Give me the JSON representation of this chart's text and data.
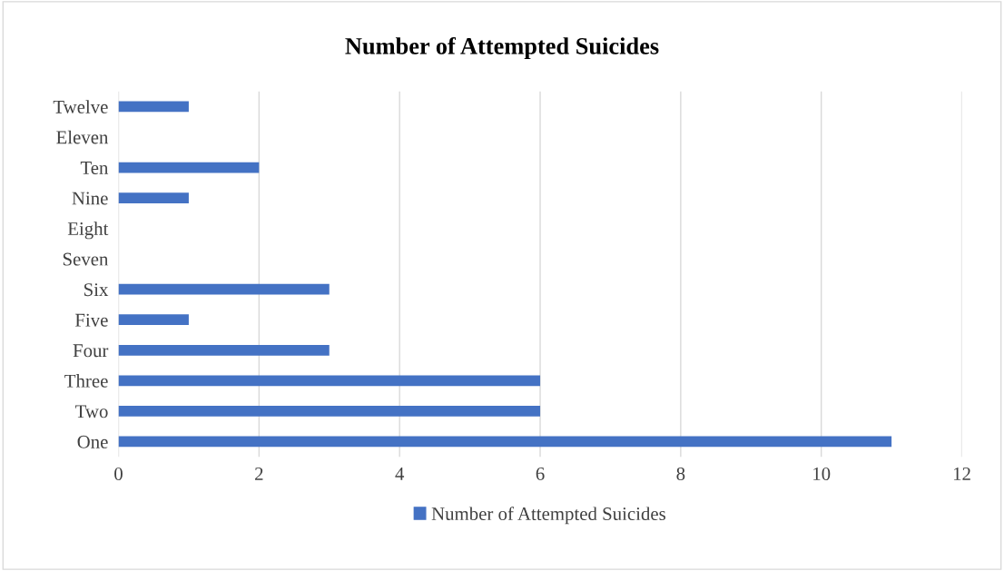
{
  "chart_data": {
    "type": "bar",
    "orientation": "horizontal",
    "title": "Number of Attempted Suicides",
    "categories": [
      "Twelve",
      "Eleven",
      "Ten",
      "Nine",
      "Eight",
      "Seven",
      "Six",
      "Five",
      "Four",
      "Three",
      "Two",
      "One"
    ],
    "series": [
      {
        "name": "Number of Attempted Suicides",
        "color": "#4472c4",
        "values": [
          1,
          0,
          2,
          1,
          0,
          0,
          3,
          1,
          3,
          6,
          6,
          11
        ]
      }
    ],
    "xlim": [
      0,
      12
    ],
    "xticks": [
      0,
      2,
      4,
      6,
      8,
      10,
      12
    ],
    "grid": "x",
    "legend": "bottom"
  }
}
